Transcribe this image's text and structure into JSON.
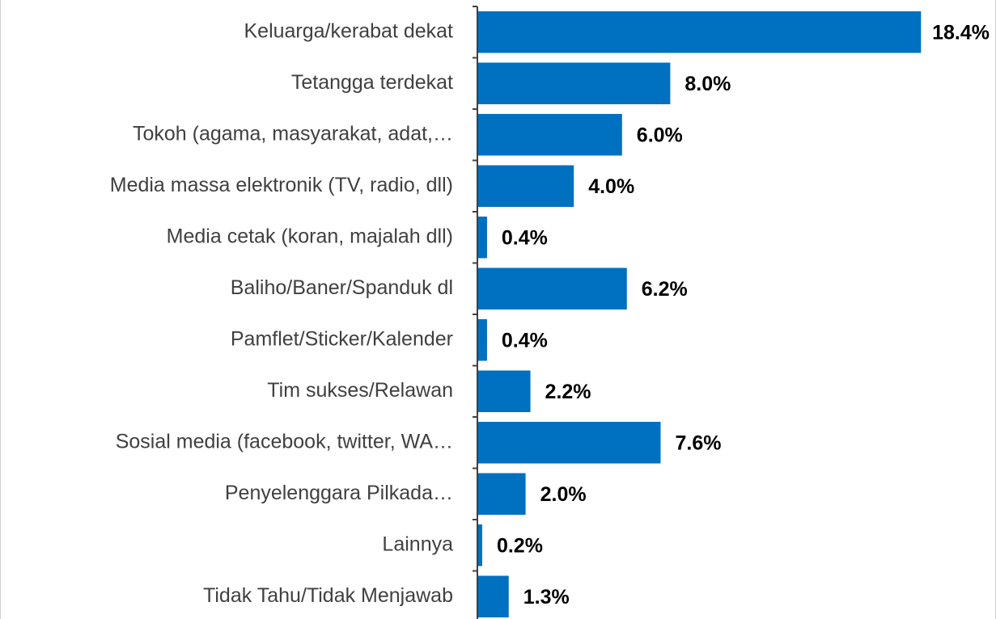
{
  "chart_data": {
    "type": "bar",
    "orientation": "horizontal",
    "color": "#0070c0",
    "categories": [
      "Keluarga/kerabat dekat",
      "Tetangga terdekat",
      "Tokoh (agama, masyarakat, adat,…",
      "Media massa elektronik (TV, radio, dll)",
      "Media cetak (koran, majalah dll)",
      "Baliho/Baner/Spanduk dl",
      "Pamflet/Sticker/Kalender",
      "Tim sukses/Relawan",
      "Sosial media (facebook, twitter, WA…",
      "Penyelenggara Pilkada…",
      "Lainnya",
      "Tidak Tahu/Tidak Menjawab"
    ],
    "values": [
      18.4,
      8.0,
      6.0,
      4.0,
      0.4,
      6.2,
      0.4,
      2.2,
      7.6,
      2.0,
      0.2,
      1.3
    ],
    "value_labels": [
      "18.4%",
      "8.0%",
      "6.0%",
      "4.0%",
      "0.4%",
      "6.2%",
      "0.4%",
      "2.2%",
      "7.6%",
      "2.0%",
      "0.2%",
      "1.3%"
    ]
  }
}
